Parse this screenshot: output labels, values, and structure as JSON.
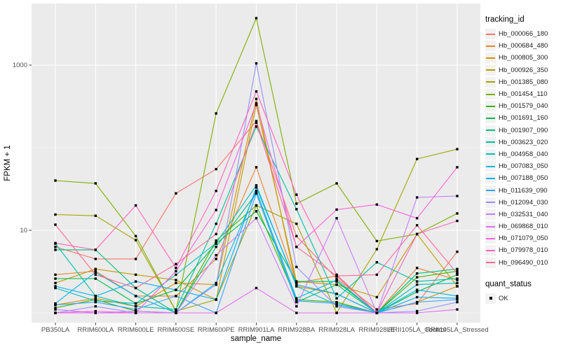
{
  "chart_data": {
    "type": "line",
    "xlabel": "sample_name",
    "ylabel": "FPKM + 1",
    "y_scale": "log10",
    "ylim": [
      1,
      5600
    ],
    "y_ticks_labeled": [
      "10",
      "1000"
    ],
    "y_tick_values": [
      10,
      1000
    ],
    "y_gridlines_major": [
      10,
      1000
    ],
    "y_gridlines_minor": [
      1,
      100
    ],
    "grid": "on",
    "panel_bg": "#EBEBEB",
    "grid_color": "#FFFFFF",
    "tick_label_color": "#4D4D4D",
    "marker": "black-square",
    "marker_color": "#000000",
    "legend_position": "right",
    "legend_title": "tracking_id",
    "categories": [
      "PB350LA",
      "RRIM600LA",
      "RRIM600LE",
      "RRIM600SE",
      "RRIM600PE",
      "RRIM901LA",
      "RRIM928BA",
      "RRIM928LA",
      "RRIM928LE",
      "RRII105LA_Control",
      "RRII105LA_Stressed"
    ],
    "series": [
      {
        "name": "Hb_000066_180",
        "color": "#F8766D",
        "values": [
          6.3,
          4.5,
          4.5,
          28,
          55,
          210,
          8.5,
          2.6,
          1.1,
          1.3,
          5.5
        ]
      },
      {
        "name": "Hb_000684_480",
        "color": "#EA8331",
        "values": [
          2.9,
          3.2,
          1.6,
          1.6,
          4.5,
          58,
          2.3,
          2.8,
          1.0,
          3.5,
          2.5
        ]
      },
      {
        "name": "Hb_000805_300",
        "color": "#D89000",
        "values": [
          1.25,
          1.5,
          1.2,
          2.3,
          2.2,
          390,
          2.1,
          1.7,
          1.0,
          1.35,
          2.1
        ]
      },
      {
        "name": "Hb_000926_350",
        "color": "#C09B00",
        "values": [
          2.3,
          3.4,
          2.9,
          2.5,
          1.45,
          330,
          2.4,
          2.2,
          1.55,
          9,
          2.1
        ]
      },
      {
        "name": "Hb_001385_080",
        "color": "#A3A500",
        "values": [
          15.5,
          15,
          7.6,
          1.05,
          1.45,
          20,
          12,
          1.0,
          5.9,
          73,
          96
        ]
      },
      {
        "name": "Hb_001454_110",
        "color": "#7CAE00",
        "values": [
          40,
          37,
          8.5,
          1.05,
          260,
          3700,
          21,
          37,
          7.4,
          9,
          16
        ]
      },
      {
        "name": "Hb_001579_040",
        "color": "#39B600",
        "values": [
          1.15,
          1.45,
          1.05,
          1.0,
          7.5,
          20,
          1.45,
          1.35,
          1.0,
          2.7,
          3.2
        ]
      },
      {
        "name": "Hb_001691_160",
        "color": "#00BB4E",
        "values": [
          2.6,
          2.6,
          1.3,
          1.9,
          6.9,
          17,
          2.4,
          2.4,
          1.0,
          1.8,
          2.9
        ]
      },
      {
        "name": "Hb_001907_090",
        "color": "#00BF7D",
        "values": [
          5.8,
          5.8,
          2.0,
          1.0,
          6.3,
          28,
          1.35,
          2.2,
          1.0,
          3.0,
          3.4
        ]
      },
      {
        "name": "Hb_003623_020",
        "color": "#00C1A3",
        "values": [
          6.9,
          1.6,
          1.2,
          1.1,
          12,
          180,
          18,
          1.5,
          4.1,
          2.4,
          2.6
        ]
      },
      {
        "name": "Hb_004958_040",
        "color": "#00BFC4",
        "values": [
          2.0,
          1.4,
          1.3,
          2.9,
          7.0,
          35,
          2.1,
          1.25,
          1.0,
          2.2,
          2.3
        ]
      },
      {
        "name": "Hb_007083_050",
        "color": "#00BAE0",
        "values": [
          1.3,
          3.1,
          1.6,
          1.0,
          2.3,
          30,
          1.5,
          2.5,
          1.0,
          1.9,
          1.6
        ]
      },
      {
        "name": "Hb_007188_050",
        "color": "#00B0F6",
        "values": [
          2.1,
          1.6,
          2.4,
          1.9,
          1.45,
          33,
          2.2,
          1.7,
          1.0,
          1.55,
          1.5
        ]
      },
      {
        "name": "Hb_011639_090",
        "color": "#35A2FF",
        "values": [
          1.25,
          1.35,
          1.1,
          1.6,
          1.0,
          28,
          1.4,
          1.3,
          1.0,
          1.35,
          1.45
        ]
      },
      {
        "name": "Hb_012094_030",
        "color": "#9590FF",
        "values": [
          1.0,
          1.2,
          1.0,
          1.0,
          2.2,
          1050,
          3.6,
          1.2,
          1.0,
          1.05,
          1.35
        ]
      },
      {
        "name": "Hb_032531_040",
        "color": "#C77CFF",
        "values": [
          1.1,
          1.0,
          1.05,
          1.0,
          5.0,
          14,
          1.2,
          14,
          1.0,
          25,
          26
        ]
      },
      {
        "name": "Hb_069868_010",
        "color": "#E76BF3",
        "values": [
          1.0,
          1.0,
          1.0,
          1.0,
          1.0,
          2.0,
          1.0,
          1.0,
          1.0,
          1.0,
          1.1
        ]
      },
      {
        "name": "Hb_071079_050",
        "color": "#FA62DB",
        "values": [
          1.0,
          1.05,
          1.0,
          3.2,
          17.6,
          345,
          6.3,
          17.8,
          20.5,
          14,
          58
        ]
      },
      {
        "name": "Hb_079978_010",
        "color": "#FF62BC",
        "values": [
          7.0,
          5.8,
          20,
          3.5,
          30,
          480,
          27,
          2.9,
          1.0,
          9,
          13
        ]
      },
      {
        "name": "Hb_096490_010",
        "color": "#FF6A98",
        "values": [
          11.7,
          2.9,
          2.0,
          3.9,
          9,
          200,
          6.3,
          2.8,
          2.9,
          11.5,
          3.0
        ]
      }
    ],
    "quant_legend": {
      "title": "quant_status",
      "items": [
        "OK"
      ]
    }
  }
}
